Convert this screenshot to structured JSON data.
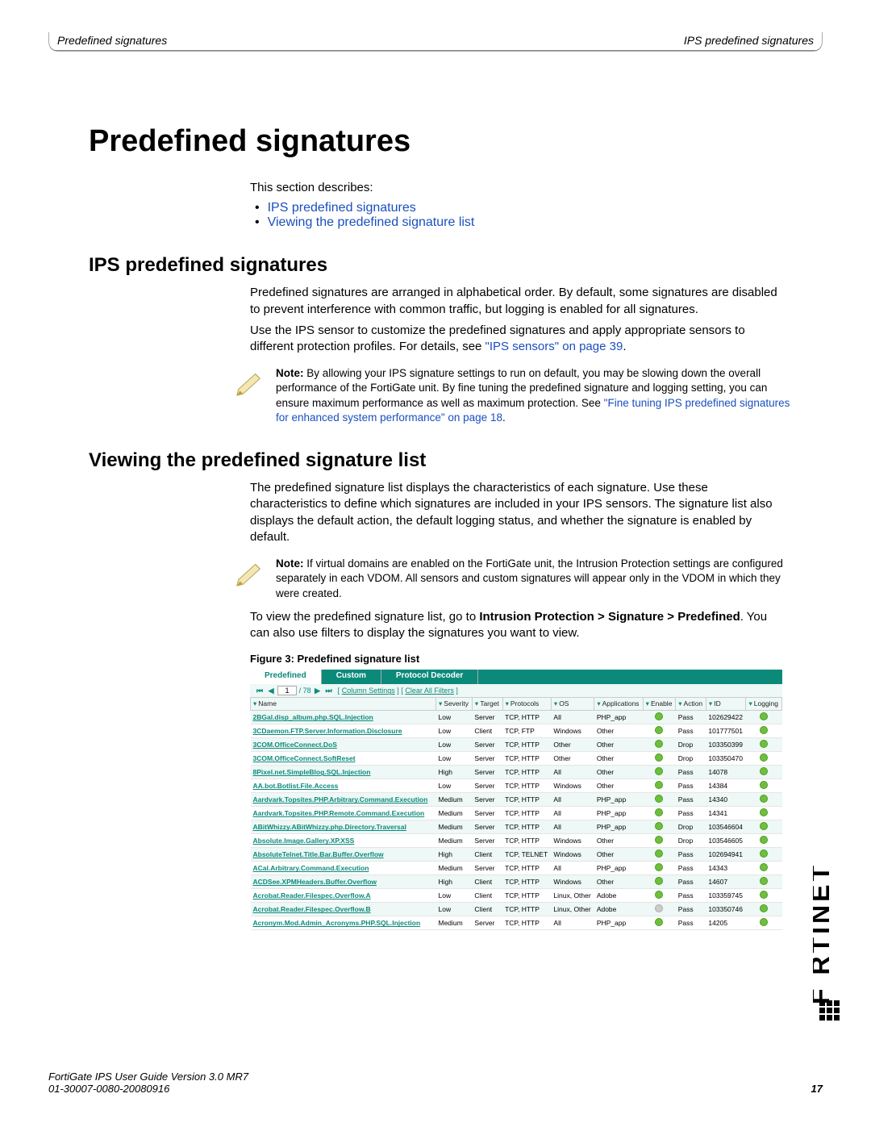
{
  "header": {
    "left": "Predefined signatures",
    "right": "IPS predefined signatures"
  },
  "title": "Predefined signatures",
  "intro": "This section describes:",
  "toc": [
    "IPS predefined signatures",
    "Viewing the predefined signature list"
  ],
  "sec1": {
    "h": "IPS predefined signatures",
    "p1": "Predefined signatures are arranged in alphabetical order. By default, some signatures are disabled to prevent interference with common traffic, but logging is enabled for all signatures.",
    "p2a": "Use the IPS sensor to customize the predefined signatures and apply appropriate sensors to different protection profiles. For details, see ",
    "p2link": "\"IPS sensors\" on page 39",
    "p2b": ".",
    "note_label": "Note:",
    "note1a": " By allowing your IPS signature settings to run on default, you may be slowing down the overall performance of the FortiGate unit. By fine tuning the predefined signature and logging setting, you can ensure maximum performance as well as maximum protection. See ",
    "note1link": "\"Fine tuning IPS predefined signatures for enhanced system performance\" on page 18",
    "note1b": "."
  },
  "sec2": {
    "h": "Viewing the predefined signature list",
    "p1": "The predefined signature list displays the characteristics of each signature. Use these characteristics to define which signatures are included in your IPS sensors. The signature list also displays the default action, the default logging status, and whether the signature is enabled by default.",
    "note_label": "Note:",
    "note1": " If virtual domains are enabled on the FortiGate unit, the Intrusion Protection settings are configured separately in each VDOM. All sensors and custom signatures will appear only in the VDOM in which they were created.",
    "p2a": "To view the predefined signature list, go to ",
    "p2b": "Intrusion Protection > Signature > Predefined",
    "p2c": ". You can also use filters to display the signatures you want to view.",
    "fig": "Figure 3:   Predefined signature list"
  },
  "tabs": [
    "Predefined",
    "Custom",
    "Protocol Decoder"
  ],
  "pager": {
    "page": "1",
    "total": "/ 78",
    "col_settings": "Column Settings",
    "clear": "Clear All Filters"
  },
  "columns": [
    "Name",
    "Severity",
    "Target",
    "Protocols",
    "OS",
    "Applications",
    "Enable",
    "Action",
    "ID",
    "Logging"
  ],
  "rows": [
    {
      "name": "2BGal.disp_album.php.SQL.Injection",
      "sev": "Low",
      "tgt": "Server",
      "proto": "TCP, HTTP",
      "os": "All",
      "app": "PHP_app",
      "en": true,
      "act": "Pass",
      "id": "102629422"
    },
    {
      "name": "3CDaemon.FTP.Server.Information.Disclosure",
      "sev": "Low",
      "tgt": "Client",
      "proto": "TCP, FTP",
      "os": "Windows",
      "app": "Other",
      "en": true,
      "act": "Pass",
      "id": "101777501"
    },
    {
      "name": "3COM.OfficeConnect.DoS",
      "sev": "Low",
      "tgt": "Server",
      "proto": "TCP, HTTP",
      "os": "Other",
      "app": "Other",
      "en": true,
      "act": "Drop",
      "id": "103350399"
    },
    {
      "name": "3COM.OfficeConnect.SoftReset",
      "sev": "Low",
      "tgt": "Server",
      "proto": "TCP, HTTP",
      "os": "Other",
      "app": "Other",
      "en": true,
      "act": "Drop",
      "id": "103350470"
    },
    {
      "name": "8Pixel.net.SimpleBlog.SQL.Injection",
      "sev": "High",
      "tgt": "Server",
      "proto": "TCP, HTTP",
      "os": "All",
      "app": "Other",
      "en": true,
      "act": "Pass",
      "id": "14078"
    },
    {
      "name": "AA.bot.Botlist.File.Access",
      "sev": "Low",
      "tgt": "Server",
      "proto": "TCP, HTTP",
      "os": "Windows",
      "app": "Other",
      "en": true,
      "act": "Pass",
      "id": "14384"
    },
    {
      "name": "Aardvark.Topsites.PHP.Arbitrary.Command.Execution",
      "sev": "Medium",
      "tgt": "Server",
      "proto": "TCP, HTTP",
      "os": "All",
      "app": "PHP_app",
      "en": true,
      "act": "Pass",
      "id": "14340"
    },
    {
      "name": "Aardvark.Topsites.PHP.Remote.Command.Execution",
      "sev": "Medium",
      "tgt": "Server",
      "proto": "TCP, HTTP",
      "os": "All",
      "app": "PHP_app",
      "en": true,
      "act": "Pass",
      "id": "14341"
    },
    {
      "name": "ABitWhizzy.ABitWhizzy.php.Directory.Traversal",
      "sev": "Medium",
      "tgt": "Server",
      "proto": "TCP, HTTP",
      "os": "All",
      "app": "PHP_app",
      "en": true,
      "act": "Drop",
      "id": "103546604"
    },
    {
      "name": "Absolute.Image.Gallery.XP.XSS",
      "sev": "Medium",
      "tgt": "Server",
      "proto": "TCP, HTTP",
      "os": "Windows",
      "app": "Other",
      "en": true,
      "act": "Drop",
      "id": "103546605"
    },
    {
      "name": "AbsoluteTelnet.Title.Bar.Buffer.Overflow",
      "sev": "High",
      "tgt": "Client",
      "proto": "TCP, TELNET",
      "os": "Windows",
      "app": "Other",
      "en": true,
      "act": "Pass",
      "id": "102694941"
    },
    {
      "name": "ACal.Arbitrary.Command.Execution",
      "sev": "Medium",
      "tgt": "Server",
      "proto": "TCP, HTTP",
      "os": "All",
      "app": "PHP_app",
      "en": true,
      "act": "Pass",
      "id": "14343"
    },
    {
      "name": "ACDSee.XPMHeaders.Buffer.Overflow",
      "sev": "High",
      "tgt": "Client",
      "proto": "TCP, HTTP",
      "os": "Windows",
      "app": "Other",
      "en": true,
      "act": "Pass",
      "id": "14607"
    },
    {
      "name": "Acrobat.Reader.Filespec.Overflow.A",
      "sev": "Low",
      "tgt": "Client",
      "proto": "TCP, HTTP",
      "os": "Linux, Other",
      "app": "Adobe",
      "en": true,
      "act": "Pass",
      "id": "103359745"
    },
    {
      "name": "Acrobat.Reader.Filespec.Overflow.B",
      "sev": "Low",
      "tgt": "Client",
      "proto": "TCP, HTTP",
      "os": "Linux, Other",
      "app": "Adobe",
      "en": false,
      "act": "Pass",
      "id": "103350746"
    },
    {
      "name": "Acronym.Mod.Admin_Acronyms.PHP.SQL.Injection",
      "sev": "Medium",
      "tgt": "Server",
      "proto": "TCP, HTTP",
      "os": "All",
      "app": "PHP_app",
      "en": true,
      "act": "Pass",
      "id": "14205"
    }
  ],
  "footer": {
    "l1": "FortiGate IPS User Guide Version 3.0 MR7",
    "l2": "01-30007-0080-20080916",
    "page": "17"
  },
  "colors": {
    "link": "#1a4fbf",
    "teal": "#0b8a7a",
    "row_alt": "#eef8f6"
  }
}
